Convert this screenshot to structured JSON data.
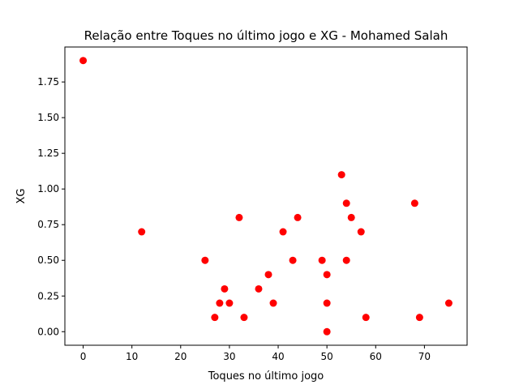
{
  "chart_data": {
    "type": "scatter",
    "title": "Relação entre Toques no último jogo e XG - Mohamed Salah",
    "xlabel": "Toques no último jogo",
    "ylabel": "XG",
    "xlim": [
      -3.75,
      78.75
    ],
    "ylim": [
      -0.095,
      1.995
    ],
    "x_ticks": [
      0,
      10,
      20,
      30,
      40,
      50,
      60,
      70
    ],
    "x_tick_labels": [
      "0",
      "10",
      "20",
      "30",
      "40",
      "50",
      "60",
      "70"
    ],
    "y_ticks": [
      0.0,
      0.25,
      0.5,
      0.75,
      1.0,
      1.25,
      1.5,
      1.75
    ],
    "y_tick_labels": [
      "0.00",
      "0.25",
      "0.50",
      "0.75",
      "1.00",
      "1.25",
      "1.50",
      "1.75"
    ],
    "grid": false,
    "legend": "none",
    "marker_color": "#ff0000",
    "points": [
      {
        "x": 0,
        "y": 1.9
      },
      {
        "x": 12,
        "y": 0.7
      },
      {
        "x": 25,
        "y": 0.5
      },
      {
        "x": 27,
        "y": 0.1
      },
      {
        "x": 28,
        "y": 0.2
      },
      {
        "x": 29,
        "y": 0.3
      },
      {
        "x": 30,
        "y": 0.2
      },
      {
        "x": 32,
        "y": 0.8
      },
      {
        "x": 33,
        "y": 0.1
      },
      {
        "x": 36,
        "y": 0.3
      },
      {
        "x": 38,
        "y": 0.4
      },
      {
        "x": 39,
        "y": 0.2
      },
      {
        "x": 41,
        "y": 0.7
      },
      {
        "x": 43,
        "y": 0.5
      },
      {
        "x": 44,
        "y": 0.8
      },
      {
        "x": 49,
        "y": 0.5
      },
      {
        "x": 50,
        "y": 0.4
      },
      {
        "x": 50,
        "y": 0.2
      },
      {
        "x": 50,
        "y": 0.0
      },
      {
        "x": 53,
        "y": 1.1
      },
      {
        "x": 54,
        "y": 0.9
      },
      {
        "x": 54,
        "y": 0.5
      },
      {
        "x": 55,
        "y": 0.8
      },
      {
        "x": 57,
        "y": 0.7
      },
      {
        "x": 58,
        "y": 0.1
      },
      {
        "x": 68,
        "y": 0.9
      },
      {
        "x": 69,
        "y": 0.1
      },
      {
        "x": 75,
        "y": 0.2
      }
    ]
  }
}
